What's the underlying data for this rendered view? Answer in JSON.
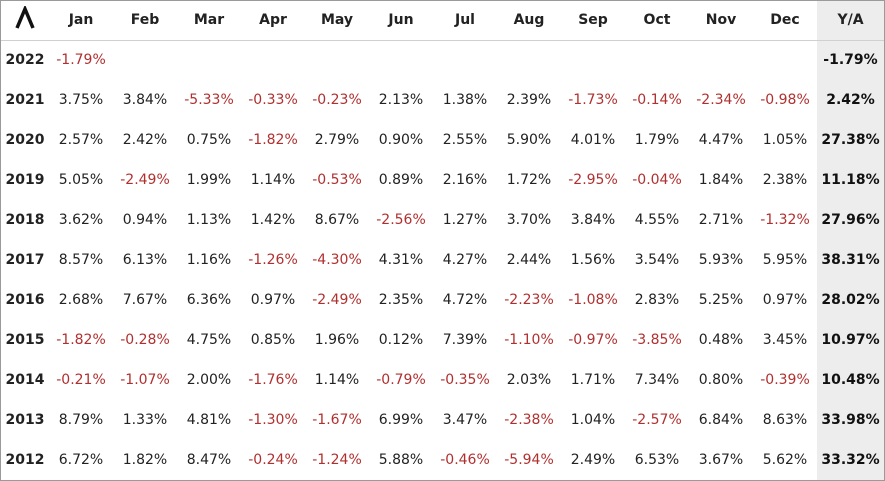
{
  "table": {
    "columns": [
      "Jan",
      "Feb",
      "Mar",
      "Apr",
      "May",
      "Jun",
      "Jul",
      "Aug",
      "Sep",
      "Oct",
      "Nov",
      "Dec"
    ],
    "total_label": "Y/A",
    "rows": [
      {
        "year": "2022",
        "months": [
          "-1.79%",
          null,
          null,
          null,
          null,
          null,
          null,
          null,
          null,
          null,
          null,
          null
        ],
        "total": "-1.79%"
      },
      {
        "year": "2021",
        "months": [
          "3.75%",
          "3.84%",
          "-5.33%",
          "-0.33%",
          "-0.23%",
          "2.13%",
          "1.38%",
          "2.39%",
          "-1.73%",
          "-0.14%",
          "-2.34%",
          "-0.98%"
        ],
        "total": "2.42%"
      },
      {
        "year": "2020",
        "months": [
          "2.57%",
          "2.42%",
          "0.75%",
          "-1.82%",
          "2.79%",
          "0.90%",
          "2.55%",
          "5.90%",
          "4.01%",
          "1.79%",
          "4.47%",
          "1.05%"
        ],
        "total": "27.38%"
      },
      {
        "year": "2019",
        "months": [
          "5.05%",
          "-2.49%",
          "1.99%",
          "1.14%",
          "-0.53%",
          "0.89%",
          "2.16%",
          "1.72%",
          "-2.95%",
          "-0.04%",
          "1.84%",
          "2.38%"
        ],
        "total": "11.18%"
      },
      {
        "year": "2018",
        "months": [
          "3.62%",
          "0.94%",
          "1.13%",
          "1.42%",
          "8.67%",
          "-2.56%",
          "1.27%",
          "3.70%",
          "3.84%",
          "4.55%",
          "2.71%",
          "-1.32%"
        ],
        "total": "27.96%"
      },
      {
        "year": "2017",
        "months": [
          "8.57%",
          "6.13%",
          "1.16%",
          "-1.26%",
          "-4.30%",
          "4.31%",
          "4.27%",
          "2.44%",
          "1.56%",
          "3.54%",
          "5.93%",
          "5.95%"
        ],
        "total": "38.31%"
      },
      {
        "year": "2016",
        "months": [
          "2.68%",
          "7.67%",
          "6.36%",
          "0.97%",
          "-2.49%",
          "2.35%",
          "4.72%",
          "-2.23%",
          "-1.08%",
          "2.83%",
          "5.25%",
          "0.97%"
        ],
        "total": "28.02%"
      },
      {
        "year": "2015",
        "months": [
          "-1.82%",
          "-0.28%",
          "4.75%",
          "0.85%",
          "1.96%",
          "0.12%",
          "7.39%",
          "-1.10%",
          "-0.97%",
          "-3.85%",
          "0.48%",
          "3.45%"
        ],
        "total": "10.97%"
      },
      {
        "year": "2014",
        "months": [
          "-0.21%",
          "-1.07%",
          "2.00%",
          "-1.76%",
          "1.14%",
          "-0.79%",
          "-0.35%",
          "2.03%",
          "1.71%",
          "7.34%",
          "0.80%",
          "-0.39%"
        ],
        "total": "10.48%"
      },
      {
        "year": "2013",
        "months": [
          "8.79%",
          "1.33%",
          "4.81%",
          "-1.30%",
          "-1.67%",
          "6.99%",
          "3.47%",
          "-2.38%",
          "1.04%",
          "-2.57%",
          "6.84%",
          "8.63%"
        ],
        "total": "33.98%"
      },
      {
        "year": "2012",
        "months": [
          "6.72%",
          "1.82%",
          "8.47%",
          "-0.24%",
          "-1.24%",
          "5.88%",
          "-0.46%",
          "-5.94%",
          "2.49%",
          "6.53%",
          "3.67%",
          "5.62%"
        ],
        "total": "33.32%"
      }
    ]
  }
}
